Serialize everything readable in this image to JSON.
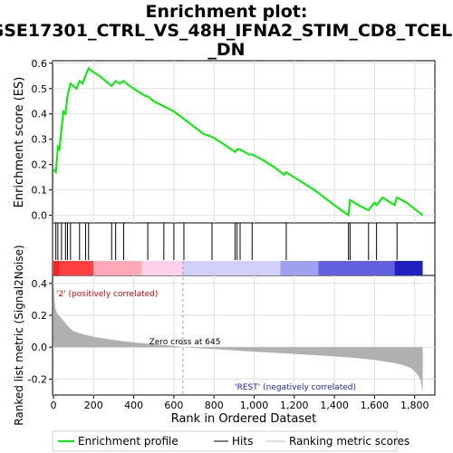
{
  "chart_data": {
    "type": "line",
    "title_lines": [
      "Enrichment plot:",
      "GSE17301_CTRL_VS_48H_IFNA2_STIM_CD8_TCELL",
      "_DN"
    ],
    "es_panel": {
      "ylabel": "Enrichment score (ES)",
      "ylim": [
        -0.03,
        0.61
      ],
      "yticks": [
        0.0,
        0.1,
        0.2,
        0.3,
        0.4,
        0.5,
        0.6
      ],
      "ytick_labels": [
        "0.0",
        "0.1",
        "0.2",
        "0.3",
        "0.4",
        "0.5",
        "0.6"
      ],
      "series": [
        {
          "name": "Enrichment profile",
          "color": "#00ee00",
          "x": [
            0,
            12,
            22,
            30,
            40,
            50,
            60,
            70,
            85,
            100,
            115,
            130,
            145,
            160,
            175,
            190,
            210,
            230,
            260,
            290,
            310,
            330,
            350,
            380,
            420,
            460,
            470,
            500,
            550,
            600,
            650,
            700,
            750,
            790,
            810,
            850,
            905,
            915,
            930,
            975,
            990,
            1040,
            1100,
            1150,
            1160,
            1200,
            1300,
            1400,
            1470,
            1478,
            1520,
            1570,
            1600,
            1610,
            1640,
            1700,
            1712,
            1760,
            1840
          ],
          "y": [
            0.18,
            0.17,
            0.27,
            0.26,
            0.34,
            0.41,
            0.4,
            0.47,
            0.52,
            0.51,
            0.5,
            0.53,
            0.52,
            0.55,
            0.58,
            0.57,
            0.56,
            0.55,
            0.53,
            0.51,
            0.53,
            0.52,
            0.53,
            0.51,
            0.49,
            0.47,
            0.47,
            0.45,
            0.43,
            0.41,
            0.38,
            0.35,
            0.32,
            0.31,
            0.3,
            0.28,
            0.25,
            0.26,
            0.26,
            0.24,
            0.24,
            0.22,
            0.19,
            0.16,
            0.17,
            0.15,
            0.1,
            0.04,
            0.0,
            0.06,
            0.04,
            0.02,
            0.05,
            0.04,
            0.07,
            0.04,
            0.07,
            0.05,
            0.0
          ]
        }
      ],
      "hits": [
        12,
        22,
        40,
        60,
        70,
        85,
        130,
        160,
        175,
        290,
        310,
        350,
        470,
        550,
        600,
        650,
        790,
        905,
        915,
        930,
        990,
        1160,
        1470,
        1478,
        1570,
        1610,
        1712
      ]
    },
    "metric_panel": {
      "ylabel_lines": [
        "Ranked list metric (Signal2Noise)"
      ],
      "ylim": [
        -0.3,
        0.45
      ],
      "yticks": [
        -0.2,
        0.0,
        0.2,
        0.4
      ],
      "ytick_labels": [
        "-0.2",
        "0.0",
        "0.2",
        "0.4"
      ],
      "fill_color": "#b0b0b0",
      "x": [
        0,
        5,
        10,
        20,
        40,
        60,
        80,
        100,
        150,
        200,
        300,
        400,
        500,
        600,
        645,
        700,
        800,
        900,
        1000,
        1100,
        1200,
        1300,
        1400,
        1500,
        1600,
        1650,
        1700,
        1750,
        1780,
        1800,
        1820,
        1830,
        1835,
        1840
      ],
      "values": [
        0.42,
        0.3,
        0.24,
        0.21,
        0.18,
        0.15,
        0.12,
        0.1,
        0.08,
        0.065,
        0.045,
        0.03,
        0.018,
        0.008,
        0.0,
        -0.005,
        -0.012,
        -0.02,
        -0.028,
        -0.035,
        -0.042,
        -0.05,
        -0.058,
        -0.067,
        -0.08,
        -0.09,
        -0.1,
        -0.115,
        -0.13,
        -0.15,
        -0.18,
        -0.21,
        -0.25,
        -0.28
      ],
      "zero_cross": 645,
      "zero_cross_label": "Zero cross at 645",
      "positive_label": "'2' (positively correlated)",
      "positive_color": "#e00000",
      "negative_label": "'REST' (negatively correlated)",
      "negative_color": "#2020c0"
    },
    "xlabel": "Rank in Ordered Dataset",
    "xlim": [
      0,
      1860
    ],
    "xticks": [
      0,
      200,
      400,
      600,
      800,
      1000,
      1200,
      1400,
      1600,
      1800
    ],
    "xtick_labels": [
      "0",
      "200",
      "400",
      "600",
      "800",
      "1,000",
      "1,200",
      "1,400",
      "1,600",
      "1,800"
    ],
    "heatmap_stops": [
      {
        "x_end": 30,
        "color": "#ff2020"
      },
      {
        "x_end": 200,
        "color": "#ff4040"
      },
      {
        "x_end": 440,
        "color": "#ffa8b8"
      },
      {
        "x_end": 645,
        "color": "#ffd0e8"
      },
      {
        "x_end": 1130,
        "color": "#d0d0f8"
      },
      {
        "x_end": 1320,
        "color": "#a0a0f0"
      },
      {
        "x_end": 1700,
        "color": "#6060e0"
      },
      {
        "x_end": 1840,
        "color": "#2020c0"
      }
    ],
    "legend": [
      {
        "label": "Enrichment profile",
        "color": "#00ee00"
      },
      {
        "label": "Hits",
        "color": "#000000"
      },
      {
        "label": "Ranking metric scores",
        "color": "#c0c0c0"
      }
    ]
  }
}
